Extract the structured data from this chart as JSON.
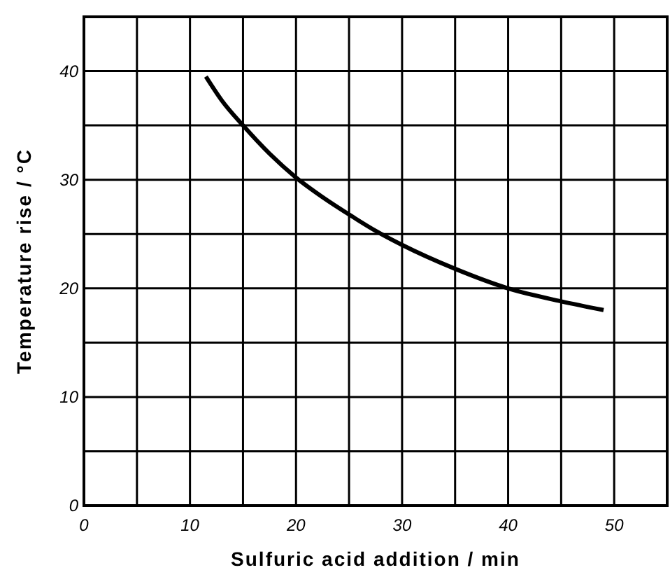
{
  "chart_data": {
    "type": "line",
    "xlabel": "Sulfuric acid addition / min",
    "ylabel": "Temperature rise / °C",
    "xlim": [
      0,
      55
    ],
    "ylim": [
      0,
      45
    ],
    "xticks": [
      0,
      {
        "value": 5,
        "label": null
      },
      10,
      {
        "value": 15,
        "label": null
      },
      20,
      {
        "value": 25,
        "label": null
      },
      30,
      {
        "value": 35,
        "label": null
      },
      40,
      {
        "value": 45,
        "label": null
      },
      50,
      {
        "value": 55,
        "label": null
      }
    ],
    "yticks": [
      0,
      {
        "value": 5,
        "label": null
      },
      10,
      {
        "value": 15,
        "label": null
      },
      20,
      {
        "value": 25,
        "label": null
      },
      30,
      {
        "value": 35,
        "label": null
      },
      40,
      {
        "value": 45,
        "label": null
      }
    ],
    "grid": true,
    "marker": "none",
    "line_style": "solid",
    "series": [
      {
        "color": "#000000",
        "x": [
          11.5,
          13,
          15,
          17.5,
          20,
          22.5,
          25,
          27.5,
          30,
          35,
          40,
          45,
          49
        ],
        "values": [
          39.5,
          37.3,
          35,
          32.4,
          30.2,
          28.4,
          26.8,
          25.3,
          24,
          21.8,
          20,
          18.8,
          18
        ]
      }
    ]
  }
}
